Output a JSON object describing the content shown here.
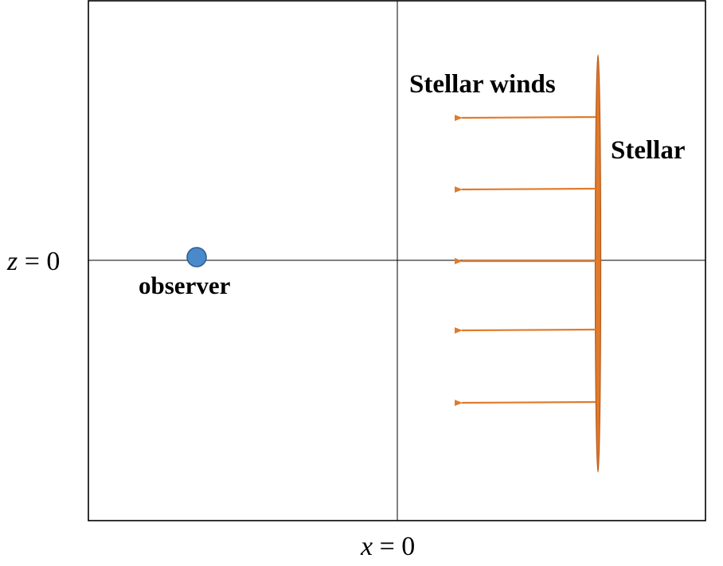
{
  "diagram": {
    "axis_labels": {
      "z_var": "z",
      "z_rest": " = 0",
      "x_var": "x",
      "x_rest": " = 0"
    },
    "labels": {
      "observer": "observer",
      "winds": "Stellar winds",
      "stellar": "Stellar"
    },
    "wind_arrow_count": 5,
    "colors": {
      "frame": "#000000",
      "observer_fill": "#4a8acb",
      "observer_stroke": "#2f5f94",
      "wind_arrow": "#e07b2c",
      "stellar_fill": "#e07b2c",
      "stellar_stroke": "#b65a1c"
    }
  }
}
